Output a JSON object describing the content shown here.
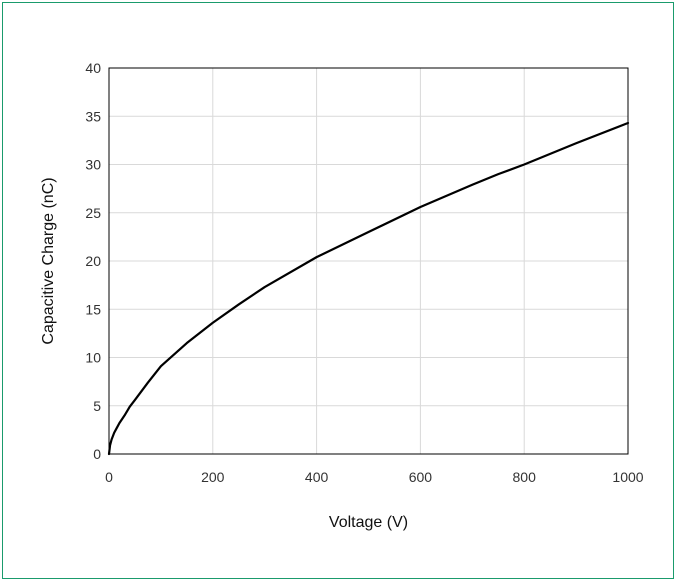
{
  "chart_data": {
    "type": "line",
    "title": "",
    "xlabel": "Voltage (V)",
    "ylabel": "Capacitive Charge (nC)",
    "xlim": [
      0,
      1000
    ],
    "ylim": [
      0,
      40
    ],
    "x_ticks": [
      0,
      200,
      400,
      600,
      800,
      1000
    ],
    "y_ticks": [
      0,
      5,
      10,
      15,
      20,
      25,
      30,
      35,
      40
    ],
    "grid": true,
    "legend": "none",
    "colors": {
      "line": "#000000",
      "grid": "#d9d9d9",
      "border": "#1a9b6c"
    },
    "series": [
      {
        "x": [
          0,
          2,
          5,
          10,
          15,
          20,
          30,
          40,
          50,
          75,
          100,
          150,
          200,
          250,
          300,
          400,
          500,
          600,
          700,
          750,
          800,
          900,
          1000
        ],
        "y": [
          0,
          0.9,
          1.5,
          2.2,
          2.7,
          3.2,
          4.0,
          4.9,
          5.6,
          7.4,
          9.1,
          11.5,
          13.6,
          15.5,
          17.3,
          20.4,
          23.0,
          25.6,
          27.9,
          29.0,
          30.0,
          32.2,
          34.3
        ]
      }
    ]
  }
}
